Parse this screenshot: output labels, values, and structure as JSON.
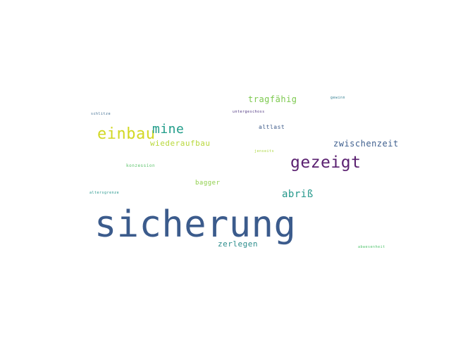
{
  "words": {
    "sicherung": {
      "text": "sicherung",
      "color": "#3b5b8c"
    },
    "gezeigt": {
      "text": "gezeigt",
      "color": "#5a2070"
    },
    "einbau": {
      "text": "einbau",
      "color": "#d2d824"
    },
    "mine": {
      "text": "mine",
      "color": "#1f9c89"
    },
    "zwischenzeit": {
      "text": "zwischenzeit",
      "color": "#3e5f8e"
    },
    "abriss": {
      "text": "abriß",
      "color": "#22978a"
    },
    "tragfaehig": {
      "text": "tragfähig",
      "color": "#7cc94e"
    },
    "wiederaufbau": {
      "text": "wiederaufbau",
      "color": "#b8d83a"
    },
    "zerlegen": {
      "text": "zerlegen",
      "color": "#2c8d8c"
    },
    "bagger": {
      "text": "bagger",
      "color": "#8fcf4a"
    },
    "altlast": {
      "text": "altlast",
      "color": "#3f5c8a"
    },
    "konzession": {
      "text": "konzession",
      "color": "#5bc36a"
    },
    "untergeschoss": {
      "text": "untergeschoss",
      "color": "#472d7b"
    },
    "schlitze": {
      "text": "schlitze",
      "color": "#3c6a8f"
    },
    "gewinn": {
      "text": "gewinn",
      "color": "#2b7a8e"
    },
    "jenseits": {
      "text": "jenseits",
      "color": "#a8d63a"
    },
    "altersgrenze": {
      "text": "altersgrenze",
      "color": "#22958b"
    },
    "abwesend": {
      "text": "abwesenheit",
      "color": "#4ec36b"
    }
  }
}
